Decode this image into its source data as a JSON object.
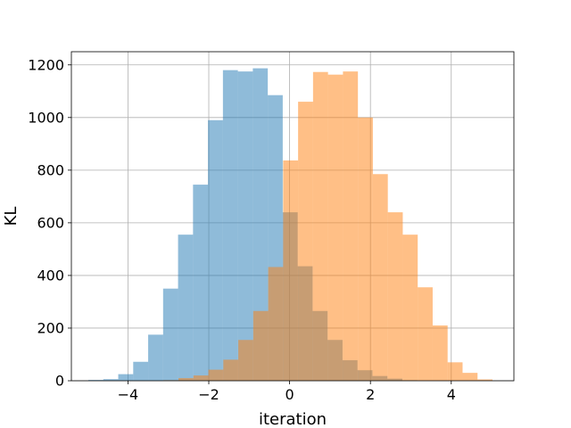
{
  "chart_data": {
    "type": "histogram",
    "title": "",
    "xlabel": "iteration",
    "ylabel": "KL",
    "xlim": [
      -5.4,
      5.55
    ],
    "ylim": [
      0,
      1250
    ],
    "xticks": [
      -4,
      -2,
      0,
      2,
      4
    ],
    "xtick_labels": [
      "−4",
      "−2",
      "0",
      "2",
      "4"
    ],
    "yticks": [
      0,
      200,
      400,
      600,
      800,
      1000,
      1200
    ],
    "ytick_labels": [
      "0",
      "200",
      "400",
      "600",
      "800",
      "1000",
      "1200"
    ],
    "grid": true,
    "legend": "none",
    "series": [
      {
        "color": "#1f77b4",
        "alpha": 0.5,
        "bin_edges": [
          -4.98,
          -4.61,
          -4.24,
          -3.87,
          -3.5,
          -3.13,
          -2.76,
          -2.39,
          -2.02,
          -1.65,
          -1.28,
          -0.91,
          -0.54,
          -0.17,
          0.2,
          0.57,
          0.94,
          1.31,
          1.68,
          2.05,
          2.42,
          2.79,
          3.16
        ],
        "counts": [
          3,
          6,
          25,
          72,
          175,
          350,
          555,
          745,
          990,
          1180,
          1175,
          1187,
          1085,
          640,
          435,
          265,
          155,
          78,
          40,
          18,
          8,
          2
        ]
      },
      {
        "color": "#ff7f0e",
        "alpha": 0.5,
        "bin_edges": [
          -3.12,
          -2.75,
          -2.38,
          -2.01,
          -1.64,
          -1.27,
          -0.9,
          -0.53,
          -0.16,
          0.21,
          0.58,
          0.95,
          1.32,
          1.69,
          2.06,
          2.43,
          2.8,
          3.17,
          3.54,
          3.91,
          4.28,
          4.65,
          5.02
        ],
        "counts": [
          2,
          10,
          20,
          42,
          80,
          155,
          265,
          432,
          837,
          1060,
          1173,
          1163,
          1175,
          1000,
          785,
          640,
          555,
          355,
          210,
          70,
          30,
          5
        ]
      }
    ]
  }
}
